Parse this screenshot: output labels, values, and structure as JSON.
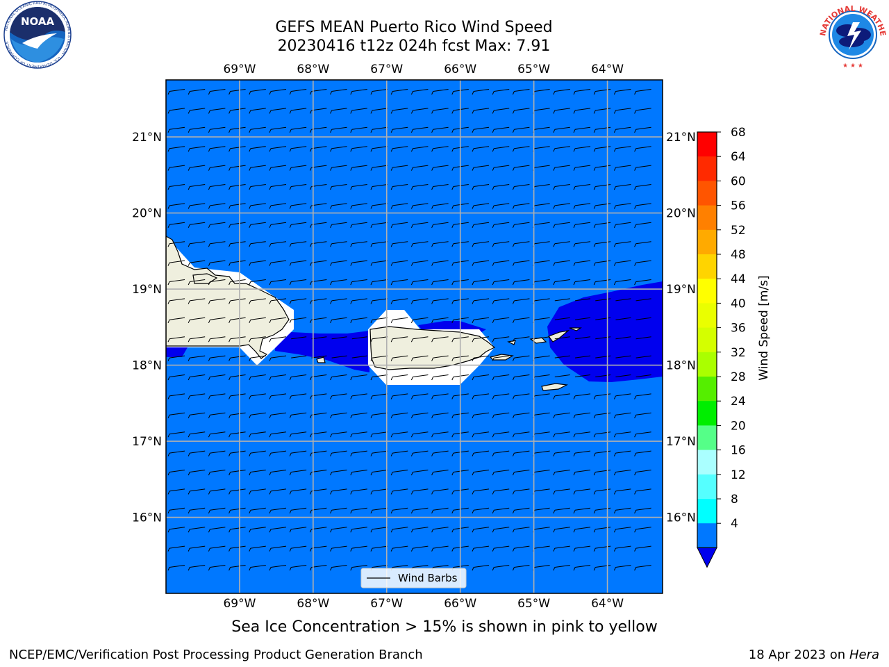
{
  "title": {
    "line1": "GEFS MEAN Puerto Rico Wind Speed",
    "line2": "20230416 t12z 024h fcst   Max: 7.91"
  },
  "logos": {
    "left": "NOAA",
    "left_ring": "NATIONAL OCEANIC AND ATMOSPHERIC ADMINISTRATION · U.S. DEPARTMENT OF COMMERCE",
    "right_ring": "NATIONAL WEATHER SERVICE"
  },
  "map": {
    "lon_labels": [
      "69°W",
      "68°W",
      "67°W",
      "66°W",
      "65°W",
      "64°W"
    ],
    "lat_labels": [
      "21°N",
      "20°N",
      "19°N",
      "18°N",
      "17°N",
      "16°N"
    ],
    "lon_range": [
      -70,
      -63.25
    ],
    "lat_range": [
      15,
      21.75
    ],
    "ocean_color": "#0078ff",
    "low_wind_color": "#0000ee",
    "land_color": "#efefde",
    "legend_label": "Wind Barbs"
  },
  "colorbar": {
    "label": "Wind Speed [m/s]",
    "ticks": [
      "68",
      "64",
      "60",
      "56",
      "52",
      "48",
      "44",
      "40",
      "36",
      "32",
      "28",
      "24",
      "20",
      "16",
      "12",
      "8",
      "4"
    ],
    "colors": [
      "#ff0000",
      "#ff2a00",
      "#ff5500",
      "#ff8000",
      "#ffaa00",
      "#ffd400",
      "#ffff00",
      "#eaff00",
      "#d4ff00",
      "#aaff00",
      "#55ee00",
      "#00ee00",
      "#55ff88",
      "#aaffff",
      "#55ffff",
      "#00ffff",
      "#0078ff"
    ],
    "under_color": "#0000ee"
  },
  "subtitle": "Sea Ice Concentration > 15% is shown in pink to yellow",
  "footer": {
    "left": "NCEP/EMC/Verification Post Processing Product Generation Branch",
    "right_prefix": "18 Apr 2023 on ",
    "right_machine": "Hera"
  }
}
